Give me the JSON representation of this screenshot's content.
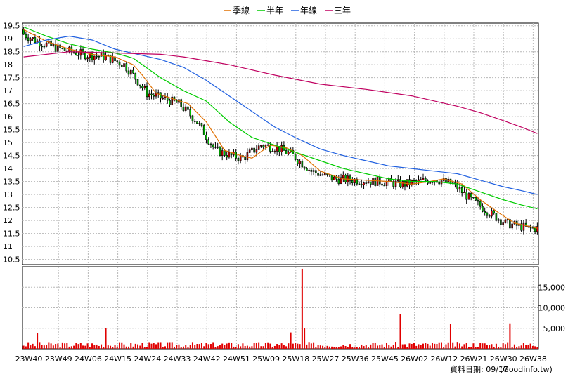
{
  "colors": {
    "up": "#e00000",
    "down": "#00c000",
    "volume": "#e00000",
    "grid": "#b8b8b8",
    "season": "#e07000",
    "halfyear": "#00cc00",
    "year": "#2060e0",
    "threeyear": "#c00060"
  },
  "legend": [
    {
      "name": "季線",
      "color": "#e07000"
    },
    {
      "name": "半年",
      "color": "#00cc00"
    },
    {
      "name": "年線",
      "color": "#2060e0"
    },
    {
      "name": "三年",
      "color": "#c00060"
    }
  ],
  "footer": {
    "date_label": "資料日期: 09/17",
    "source": "(Goodinfo.tw)"
  },
  "chart_data": [
    {
      "type": "candlestick",
      "panel": "price",
      "x_tick_labels": [
        "23W40",
        "23W49",
        "24W06",
        "24W15",
        "24W24",
        "24W33",
        "24W42",
        "24W51",
        "25W09",
        "25W18",
        "25W27",
        "25W36",
        "25W45",
        "26W02",
        "26W12",
        "26W21",
        "26W30",
        "26W38"
      ],
      "ylim": [
        10.3,
        19.6
      ],
      "y_ticks": [
        10.5,
        11,
        11.5,
        12,
        12.5,
        13,
        13.5,
        14,
        14.5,
        15,
        15.5,
        16,
        16.5,
        17,
        17.5,
        18,
        18.5,
        19,
        19.5
      ],
      "series": [
        {
          "name": "季線",
          "role": "ma",
          "points": [
            [
              0,
              19.35
            ],
            [
              10,
              18.9
            ],
            [
              20,
              18.6
            ],
            [
              30,
              18.4
            ],
            [
              40,
              18.3
            ],
            [
              48,
              18.0
            ],
            [
              52,
              17.6
            ],
            [
              58,
              16.9
            ],
            [
              65,
              16.7
            ],
            [
              72,
              16.5
            ],
            [
              80,
              15.8
            ],
            [
              88,
              14.7
            ],
            [
              95,
              14.5
            ],
            [
              100,
              14.4
            ],
            [
              108,
              14.9
            ],
            [
              115,
              14.8
            ],
            [
              122,
              14.5
            ],
            [
              130,
              13.9
            ],
            [
              140,
              13.6
            ],
            [
              150,
              13.55
            ],
            [
              160,
              13.5
            ],
            [
              170,
              13.4
            ],
            [
              178,
              13.5
            ],
            [
              184,
              13.6
            ],
            [
              192,
              13.4
            ],
            [
              200,
              12.8
            ],
            [
              208,
              12.3
            ],
            [
              215,
              11.9
            ],
            [
              225,
              11.7
            ]
          ]
        },
        {
          "name": "半年",
          "role": "ma",
          "points": [
            [
              0,
              19.45
            ],
            [
              10,
              19.1
            ],
            [
              20,
              18.8
            ],
            [
              30,
              18.6
            ],
            [
              40,
              18.45
            ],
            [
              48,
              18.25
            ],
            [
              52,
              18.0
            ],
            [
              60,
              17.5
            ],
            [
              70,
              17.0
            ],
            [
              80,
              16.6
            ],
            [
              90,
              15.8
            ],
            [
              100,
              15.2
            ],
            [
              110,
              14.9
            ],
            [
              120,
              14.6
            ],
            [
              130,
              14.3
            ],
            [
              140,
              14.0
            ],
            [
              150,
              13.8
            ],
            [
              160,
              13.6
            ],
            [
              170,
              13.5
            ],
            [
              180,
              13.5
            ],
            [
              190,
              13.4
            ],
            [
              200,
              13.1
            ],
            [
              210,
              12.8
            ],
            [
              218,
              12.6
            ],
            [
              225,
              12.45
            ]
          ]
        },
        {
          "name": "年線",
          "role": "ma",
          "points": [
            [
              0,
              18.7
            ],
            [
              10,
              18.95
            ],
            [
              20,
              19.1
            ],
            [
              30,
              18.95
            ],
            [
              40,
              18.6
            ],
            [
              50,
              18.4
            ],
            [
              60,
              18.2
            ],
            [
              70,
              17.9
            ],
            [
              80,
              17.4
            ],
            [
              90,
              16.8
            ],
            [
              100,
              16.2
            ],
            [
              110,
              15.6
            ],
            [
              120,
              15.15
            ],
            [
              130,
              14.75
            ],
            [
              140,
              14.5
            ],
            [
              150,
              14.3
            ],
            [
              160,
              14.1
            ],
            [
              170,
              14.0
            ],
            [
              180,
              13.9
            ],
            [
              190,
              13.8
            ],
            [
              200,
              13.55
            ],
            [
              210,
              13.3
            ],
            [
              218,
              13.15
            ],
            [
              225,
              13.0
            ]
          ]
        },
        {
          "name": "三年",
          "role": "ma",
          "points": [
            [
              0,
              18.3
            ],
            [
              20,
              18.5
            ],
            [
              40,
              18.45
            ],
            [
              60,
              18.4
            ],
            [
              70,
              18.3
            ],
            [
              80,
              18.15
            ],
            [
              90,
              18.0
            ],
            [
              110,
              17.6
            ],
            [
              130,
              17.25
            ],
            [
              150,
              17.05
            ],
            [
              170,
              16.8
            ],
            [
              190,
              16.4
            ],
            [
              200,
              16.15
            ],
            [
              210,
              15.85
            ],
            [
              218,
              15.6
            ],
            [
              225,
              15.35
            ]
          ]
        }
      ]
    },
    {
      "type": "bar",
      "panel": "volume",
      "ylim": [
        0,
        20000
      ],
      "y_ticks": [
        5000,
        10000,
        15000
      ],
      "y_tick_labels": [
        "5,000",
        "10,000",
        "15,000"
      ],
      "spikes": [
        {
          "week": 122,
          "value": 19500
        },
        {
          "week": 165,
          "value": 8500
        },
        {
          "week": 123,
          "value": 5000
        },
        {
          "week": 187,
          "value": 6000
        },
        {
          "week": 213,
          "value": 6200
        },
        {
          "week": 117,
          "value": 4000
        },
        {
          "week": 36,
          "value": 5000
        },
        {
          "week": 6,
          "value": 3800
        }
      ]
    }
  ]
}
